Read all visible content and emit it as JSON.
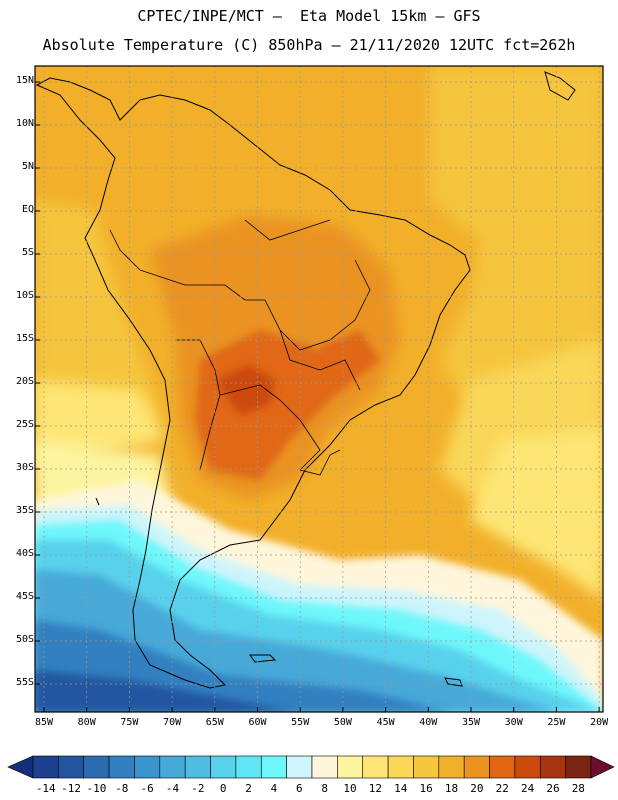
{
  "title_line1": "CPTEC/INPE/MCT –  Eta Model 15km – GFS",
  "title_line2": "Absolute Temperature (C) 850hPa – 21/11/2020 12UTC fct=262h",
  "lat_labels": [
    "15N",
    "10N",
    "5N",
    "EQ",
    "5S",
    "10S",
    "15S",
    "20S",
    "25S",
    "30S",
    "35S",
    "40S",
    "45S",
    "50S",
    "55S"
  ],
  "lon_labels": [
    "85W",
    "80W",
    "75W",
    "70W",
    "65W",
    "60W",
    "55W",
    "50W",
    "45W",
    "40W",
    "35W",
    "30W",
    "25W",
    "20W"
  ],
  "colorbar": {
    "labels": [
      "-14",
      "-12",
      "-10",
      "-8",
      "-6",
      "-4",
      "-2",
      "0",
      "2",
      "4",
      "6",
      "8",
      "10",
      "12",
      "14",
      "16",
      "18",
      "20",
      "22",
      "24",
      "26",
      "28"
    ],
    "colors": [
      "#1e3f8f",
      "#2456a0",
      "#2b6cb0",
      "#3380c0",
      "#3b95cd",
      "#46a9d8",
      "#4fbde2",
      "#58d2ec",
      "#5fe6f4",
      "#6ef7fb",
      "#cdf5fb",
      "#fff6dc",
      "#fdf4a0",
      "#fde675",
      "#f9d759",
      "#f5c53d",
      "#f2b02a",
      "#ea9320",
      "#e06712",
      "#cc4a0c",
      "#a93510",
      "#7b2414"
    ],
    "left_arrow_color": "#15307a",
    "right_arrow_color": "#6c0f2a"
  }
}
